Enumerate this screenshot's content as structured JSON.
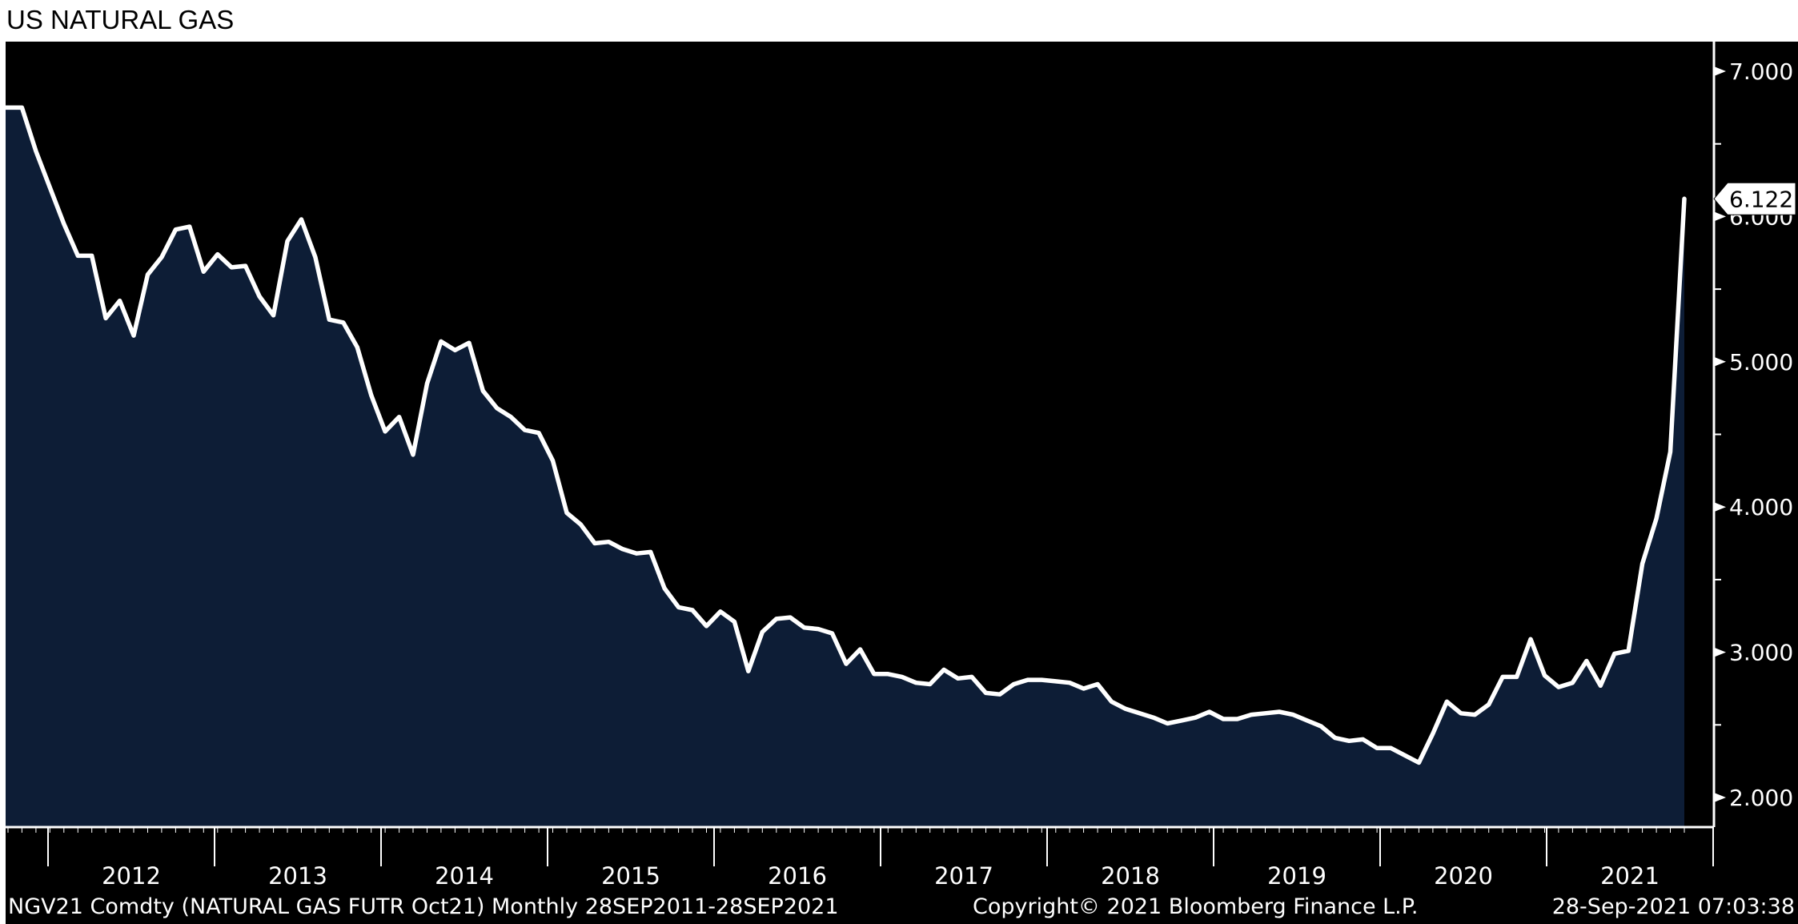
{
  "title": "US NATURAL GAS",
  "footer": {
    "left": "NGV21 Comdty (NATURAL GAS FUTR  Oct21)  Monthly 28SEP2011-28SEP2021",
    "middle": "Copyright© 2021 Bloomberg Finance L.P.",
    "right": "28-Sep-2021 07:03:38"
  },
  "colors": {
    "plot_background": "#000000",
    "area_fill": "#0d1d36",
    "line": "#ffffff",
    "axis": "#ffffff",
    "page": "#ffffff"
  },
  "chart_data": {
    "type": "area",
    "x_start": "2011-10",
    "x_end": "2021-10",
    "x_interval": "monthly",
    "x_tick_labels": [
      "2012",
      "2013",
      "2014",
      "2015",
      "2016",
      "2017",
      "2018",
      "2019",
      "2020",
      "2021"
    ],
    "y_tick_labels": [
      "2.000",
      "3.000",
      "4.000",
      "5.000",
      "6.000",
      "7.000"
    ],
    "ylim": [
      1.8,
      7.25
    ],
    "last_value_label": "6.122",
    "grid": false,
    "y_axis_side": "right",
    "series": [
      {
        "values": [
          6.75,
          6.75,
          6.45,
          6.2,
          5.95,
          5.73,
          5.73,
          5.3,
          5.42,
          5.18,
          5.6,
          5.72,
          5.91,
          5.93,
          5.62,
          5.74,
          5.65,
          5.66,
          5.45,
          5.32,
          5.83,
          5.98,
          5.72,
          5.29,
          5.27,
          5.1,
          4.77,
          4.52,
          4.62,
          4.36,
          4.85,
          5.14,
          5.08,
          5.13,
          4.8,
          4.68,
          4.62,
          4.53,
          4.51,
          4.32,
          3.96,
          3.88,
          3.75,
          3.76,
          3.71,
          3.68,
          3.69,
          3.44,
          3.31,
          3.29,
          3.18,
          3.28,
          3.21,
          2.87,
          3.14,
          3.23,
          3.24,
          3.17,
          3.16,
          3.13,
          2.92,
          3.02,
          2.85,
          2.85,
          2.83,
          2.79,
          2.78,
          2.88,
          2.82,
          2.83,
          2.72,
          2.71,
          2.78,
          2.81,
          2.81,
          2.8,
          2.79,
          2.75,
          2.78,
          2.66,
          2.61,
          2.58,
          2.55,
          2.51,
          2.53,
          2.55,
          2.59,
          2.54,
          2.54,
          2.57,
          2.58,
          2.59,
          2.57,
          2.53,
          2.49,
          2.41,
          2.39,
          2.4,
          2.34,
          2.34,
          2.29,
          2.24,
          2.44,
          2.66,
          2.58,
          2.57,
          2.64,
          2.83,
          2.83,
          3.09,
          2.84,
          2.76,
          2.79,
          2.94,
          2.77,
          2.99,
          3.01,
          3.61,
          3.92,
          4.38,
          6.122
        ]
      }
    ]
  }
}
